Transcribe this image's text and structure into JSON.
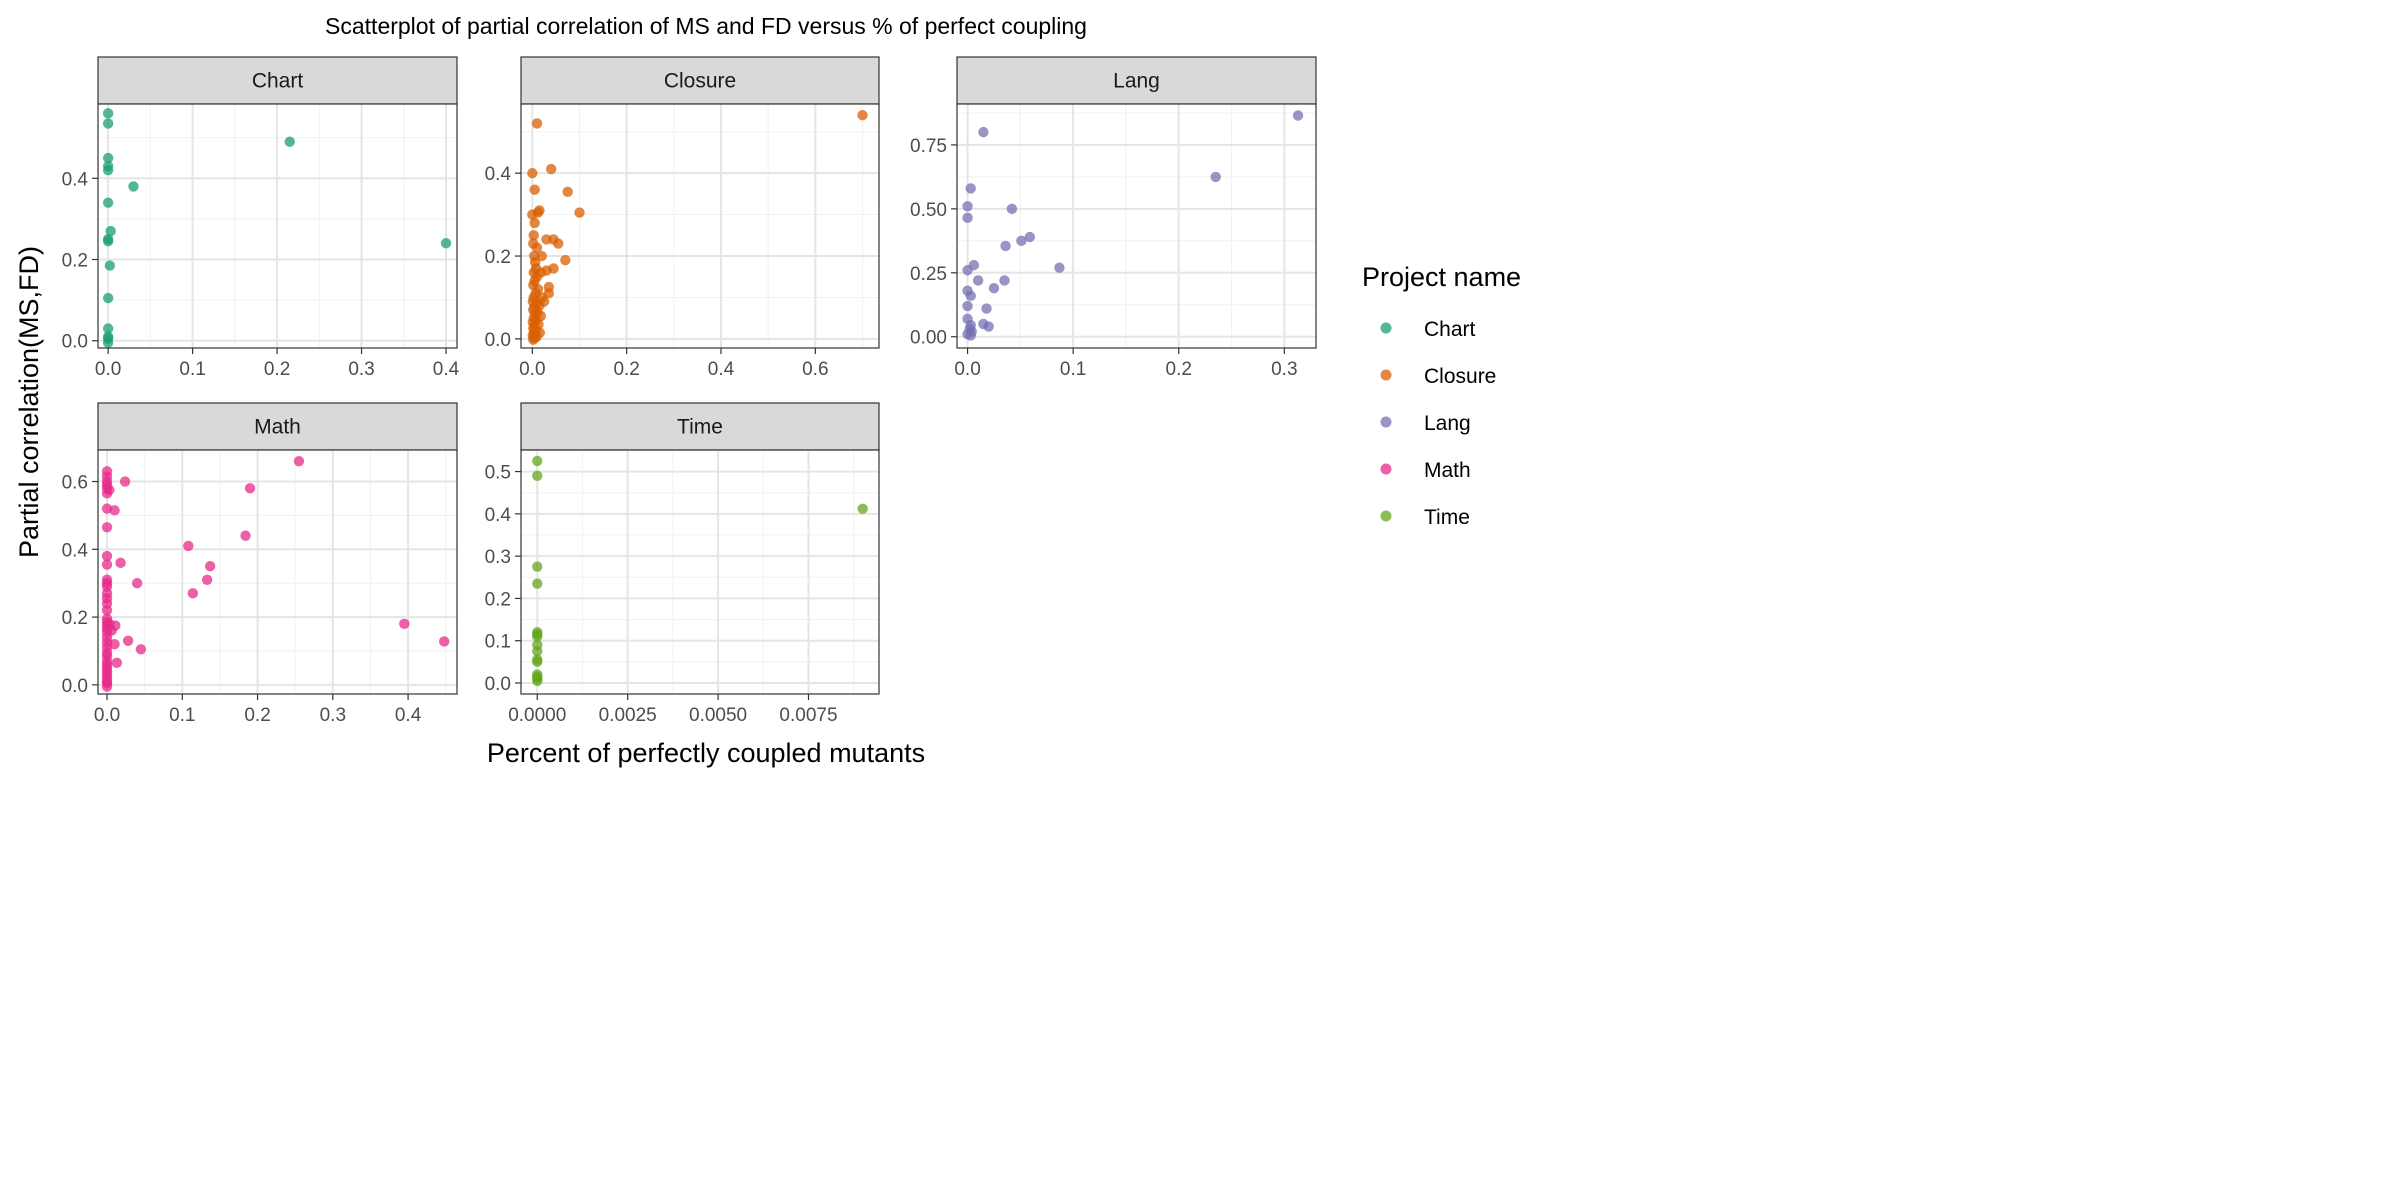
{
  "chart_data": {
    "type": "scatter",
    "title": "Scatterplot of partial correlation of MS and FD versus % of perfect coupling",
    "xlabel": "Percent of perfectly coupled mutants",
    "ylabel": "Partial correlation(MS,FD)",
    "legend": {
      "title": "Project name",
      "position": "right"
    },
    "grid": true,
    "facets": [
      {
        "name": "Chart",
        "color": "#1B9E77",
        "xlim": [
          -0.012,
          0.413
        ],
        "ylim": [
          -0.018,
          0.583
        ],
        "xticks": [
          0,
          0.1,
          0.2,
          0.3,
          0.4
        ],
        "xtick_labels": [
          "0.0",
          "0.1",
          "0.2",
          "0.3",
          "0.4"
        ],
        "yticks": [
          0,
          0.2,
          0.4
        ],
        "ytick_labels": [
          "0.0",
          "0.2",
          "0.4"
        ],
        "points": [
          [
            0,
            0.56
          ],
          [
            0,
            0.535
          ],
          [
            0,
            0.45
          ],
          [
            0,
            0.43
          ],
          [
            0,
            0.42
          ],
          [
            0,
            0.34
          ],
          [
            0,
            0.25
          ],
          [
            0,
            0.245
          ],
          [
            0.003,
            0.27
          ],
          [
            0.002,
            0.185
          ],
          [
            0,
            0.105
          ],
          [
            0,
            0.03
          ],
          [
            0,
            0.01
          ],
          [
            0,
            0.005
          ],
          [
            0,
            -0.005
          ],
          [
            0.03,
            0.38
          ],
          [
            0.215,
            0.49
          ],
          [
            0.4,
            0.24
          ]
        ]
      },
      {
        "name": "Closure",
        "color": "#D95F02",
        "xlim": [
          -0.024,
          0.735
        ],
        "ylim": [
          -0.022,
          0.567
        ],
        "xticks": [
          0,
          0.2,
          0.4,
          0.6
        ],
        "xtick_labels": [
          "0.0",
          "0.2",
          "0.4",
          "0.6"
        ],
        "yticks": [
          0,
          0.2,
          0.4
        ],
        "ytick_labels": [
          "0.0",
          "0.2",
          "0.4"
        ],
        "points": [
          [
            0.01,
            0.52
          ],
          [
            0,
            0.4
          ],
          [
            0.005,
            0.36
          ],
          [
            0,
            0.3
          ],
          [
            0.012,
            0.305
          ],
          [
            0.015,
            0.31
          ],
          [
            0.005,
            0.28
          ],
          [
            0.01,
            0.22
          ],
          [
            0.02,
            0.2
          ],
          [
            0.03,
            0.24
          ],
          [
            0.03,
            0.165
          ],
          [
            0.035,
            0.125
          ],
          [
            0.035,
            0.11
          ],
          [
            0.045,
            0.24
          ],
          [
            0.045,
            0.17
          ],
          [
            0.055,
            0.23
          ],
          [
            0.07,
            0.19
          ],
          [
            0.075,
            0.355
          ],
          [
            0.1,
            0.305
          ],
          [
            0.04,
            0.41
          ],
          [
            0.7,
            0.54
          ],
          [
            0.003,
            0.25
          ],
          [
            0.002,
            0.23
          ],
          [
            0.004,
            0.2
          ],
          [
            0.006,
            0.185
          ],
          [
            0.008,
            0.17
          ],
          [
            0.003,
            0.16
          ],
          [
            0.01,
            0.15
          ],
          [
            0.005,
            0.14
          ],
          [
            0.002,
            0.13
          ],
          [
            0.012,
            0.12
          ],
          [
            0.007,
            0.11
          ],
          [
            0.003,
            0.1
          ],
          [
            0.001,
            0.09
          ],
          [
            0.009,
            0.085
          ],
          [
            0.015,
            0.08
          ],
          [
            0.004,
            0.075
          ],
          [
            0.002,
            0.07
          ],
          [
            0.011,
            0.065
          ],
          [
            0.006,
            0.06
          ],
          [
            0.018,
            0.055
          ],
          [
            0.003,
            0.05
          ],
          [
            0.008,
            0.045
          ],
          [
            0.001,
            0.04
          ],
          [
            0.013,
            0.035
          ],
          [
            0.004,
            0.03
          ],
          [
            0.002,
            0.025
          ],
          [
            0.007,
            0.02
          ],
          [
            0.016,
            0.015
          ],
          [
            0.003,
            0.012
          ],
          [
            0.001,
            0.008
          ],
          [
            0.009,
            0.005
          ],
          [
            0.005,
            0.002
          ],
          [
            0.002,
            -0.002
          ],
          [
            0.02,
            0.1
          ],
          [
            0.025,
            0.09
          ],
          [
            0.018,
            0.16
          ]
        ]
      },
      {
        "name": "Lang",
        "color": "#7570B3",
        "xlim": [
          -0.01,
          0.33
        ],
        "ylim": [
          -0.044,
          0.91
        ],
        "xticks": [
          0,
          0.1,
          0.2,
          0.3
        ],
        "xtick_labels": [
          "0.0",
          "0.1",
          "0.2",
          "0.3"
        ],
        "yticks": [
          0,
          0.25,
          0.5,
          0.75
        ],
        "ytick_labels": [
          "0.00",
          "0.25",
          "0.50",
          "0.75"
        ],
        "points": [
          [
            0.015,
            0.8
          ],
          [
            0.003,
            0.58
          ],
          [
            0,
            0.51
          ],
          [
            0,
            0.465
          ],
          [
            0,
            0.26
          ],
          [
            0.006,
            0.28
          ],
          [
            0,
            0.18
          ],
          [
            0.003,
            0.16
          ],
          [
            0.01,
            0.22
          ],
          [
            0,
            0.12
          ],
          [
            0.018,
            0.11
          ],
          [
            0.025,
            0.19
          ],
          [
            0.035,
            0.22
          ],
          [
            0.036,
            0.355
          ],
          [
            0.042,
            0.5
          ],
          [
            0.051,
            0.375
          ],
          [
            0.059,
            0.39
          ],
          [
            0.087,
            0.27
          ],
          [
            0.235,
            0.625
          ],
          [
            0.313,
            0.865
          ],
          [
            0,
            0.07
          ],
          [
            0.003,
            0.045
          ],
          [
            0.002,
            0.03
          ],
          [
            0.004,
            0.02
          ],
          [
            0,
            0.01
          ],
          [
            0.003,
            0.005
          ],
          [
            0.015,
            0.05
          ],
          [
            0.02,
            0.04
          ]
        ]
      },
      {
        "name": "Math",
        "color": "#E7298A",
        "xlim": [
          -0.012,
          0.465
        ],
        "ylim": [
          -0.027,
          0.693
        ],
        "xticks": [
          0,
          0.1,
          0.2,
          0.3,
          0.4
        ],
        "xtick_labels": [
          "0.0",
          "0.1",
          "0.2",
          "0.3",
          "0.4"
        ],
        "yticks": [
          0,
          0.2,
          0.4,
          0.6
        ],
        "ytick_labels": [
          "0.0",
          "0.2",
          "0.4",
          "0.6"
        ],
        "points": [
          [
            0,
            0.63
          ],
          [
            0,
            0.615
          ],
          [
            0,
            0.6
          ],
          [
            0,
            0.59
          ],
          [
            0,
            0.58
          ],
          [
            0.003,
            0.575
          ],
          [
            0,
            0.565
          ],
          [
            0,
            0.52
          ],
          [
            0.01,
            0.515
          ],
          [
            0,
            0.465
          ],
          [
            0,
            0.38
          ],
          [
            0,
            0.355
          ],
          [
            0,
            0.31
          ],
          [
            0,
            0.3
          ],
          [
            0,
            0.29
          ],
          [
            0,
            0.27
          ],
          [
            0,
            0.255
          ],
          [
            0,
            0.24
          ],
          [
            0,
            0.22
          ],
          [
            0,
            0.195
          ],
          [
            0,
            0.185
          ],
          [
            0,
            0.175
          ],
          [
            0,
            0.165
          ],
          [
            0,
            0.155
          ],
          [
            0,
            0.14
          ],
          [
            0,
            0.125
          ],
          [
            0,
            0.11
          ],
          [
            0,
            0.095
          ],
          [
            0,
            0.085
          ],
          [
            0,
            0.07
          ],
          [
            0,
            0.06
          ],
          [
            0,
            0.05
          ],
          [
            0,
            0.04
          ],
          [
            0,
            0.03
          ],
          [
            0,
            0.02
          ],
          [
            0,
            0.01
          ],
          [
            0,
            0.005
          ],
          [
            0,
            -0.005
          ],
          [
            0.003,
            0.18
          ],
          [
            0.006,
            0.16
          ],
          [
            0.011,
            0.175
          ],
          [
            0.013,
            0.065
          ],
          [
            0.01,
            0.12
          ],
          [
            0.018,
            0.36
          ],
          [
            0.024,
            0.6
          ],
          [
            0.028,
            0.13
          ],
          [
            0.04,
            0.3
          ],
          [
            0.045,
            0.105
          ],
          [
            0.108,
            0.41
          ],
          [
            0.114,
            0.27
          ],
          [
            0.133,
            0.31
          ],
          [
            0.137,
            0.35
          ],
          [
            0.184,
            0.44
          ],
          [
            0.19,
            0.58
          ],
          [
            0.255,
            0.66
          ],
          [
            0.395,
            0.18
          ],
          [
            0.448,
            0.128
          ]
        ]
      },
      {
        "name": "Time",
        "color": "#66A61E",
        "xlim": [
          -0.00045,
          0.00945
        ],
        "ylim": [
          -0.026,
          0.551
        ],
        "xticks": [
          0,
          0.0025,
          0.005,
          0.0075
        ],
        "xtick_labels": [
          "0.0000",
          "0.0025",
          "0.0050",
          "0.0075"
        ],
        "yticks": [
          0,
          0.1,
          0.2,
          0.3,
          0.4,
          0.5
        ],
        "ytick_labels": [
          "0.0",
          "0.1",
          "0.2",
          "0.3",
          "0.4",
          "0.5"
        ],
        "points": [
          [
            0,
            0.525
          ],
          [
            0,
            0.49
          ],
          [
            0,
            0.275
          ],
          [
            0,
            0.235
          ],
          [
            0,
            0.12
          ],
          [
            0,
            0.115
          ],
          [
            0,
            0.11
          ],
          [
            0,
            0.09
          ],
          [
            0,
            0.075
          ],
          [
            0,
            0.055
          ],
          [
            0,
            0.05
          ],
          [
            0,
            0.02
          ],
          [
            0,
            0.015
          ],
          [
            0,
            0.01
          ],
          [
            0,
            0.005
          ],
          [
            0.009,
            0.412
          ]
        ]
      }
    ]
  }
}
